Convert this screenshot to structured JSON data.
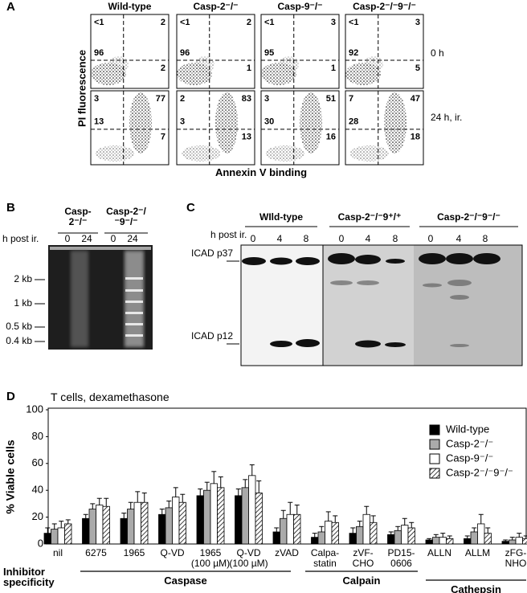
{
  "panel_a": {
    "label": "A",
    "columns": [
      "Wild-type",
      "Casp-2⁻/⁻",
      "Casp-9⁻/⁻",
      "Casp-2⁻/⁻9⁻/⁻"
    ],
    "rows": [
      "0 h",
      "24 h, ir."
    ],
    "quadrants": [
      [
        [
          "<1",
          2,
          96,
          2
        ],
        [
          "<1",
          2,
          96,
          1
        ],
        [
          "<1",
          3,
          95,
          1
        ],
        [
          "<1",
          3,
          92,
          5
        ]
      ],
      [
        [
          3,
          77,
          13,
          7
        ],
        [
          2,
          83,
          3,
          13
        ],
        [
          3,
          51,
          30,
          16
        ],
        [
          7,
          47,
          28,
          18
        ]
      ]
    ],
    "y_axis_label": "PI fluorescence",
    "x_axis_label": "Annexin V binding"
  },
  "panel_b": {
    "label": "B",
    "groups": [
      "Casp-2⁻/⁻",
      "Casp-2⁻/⁻9⁻/⁻"
    ],
    "time_label": "h post ir.",
    "times": [
      0,
      24,
      0,
      24
    ],
    "markers": [
      "2 kb",
      "1 kb",
      "0.5 kb",
      "0.4 kb"
    ]
  },
  "panel_c": {
    "label": "C",
    "groups": [
      "WIld-type",
      "Casp-2⁻/⁻9⁺/⁺",
      "Casp-2⁻/⁻9⁻/⁻"
    ],
    "time_label": "h post ir.",
    "times": [
      0,
      4,
      8,
      0,
      4,
      8,
      0,
      4,
      8
    ],
    "bands": [
      "ICAD p37",
      "ICAD p12"
    ]
  },
  "panel_d": {
    "label": "D",
    "specificity_label": "Inhibitor specificity",
    "specificity_groups": [
      "Caspase",
      "Calpain",
      "Cathepsin"
    ]
  },
  "chart_data": {
    "type": "bar",
    "title": "T cells, dexamethasone",
    "y_label": "% Viable cells",
    "categories": [
      "nil",
      "6275",
      "1965",
      "Q-VD",
      "1965 (100 µM)",
      "Q-VD (100 µM)",
      "zVAD",
      "Calpa-statin",
      "zVF-CHO",
      "PD15-0606",
      "ALLN",
      "ALLM",
      "zFG-NHO"
    ],
    "series": [
      {
        "name": "Wild-type",
        "color": "#000000",
        "values": [
          8,
          19,
          19,
          22,
          36,
          36,
          9,
          5,
          8,
          7,
          3,
          4,
          2
        ],
        "errors": [
          4,
          3,
          4,
          4,
          5,
          5,
          3,
          3,
          4,
          2,
          1,
          2,
          1
        ]
      },
      {
        "name": "Casp-2⁻/⁻",
        "color": "#aaaaaa",
        "values": [
          11,
          26,
          26,
          27,
          40,
          42,
          19,
          9,
          13,
          10,
          5,
          9,
          3
        ],
        "errors": [
          4,
          4,
          5,
          5,
          6,
          6,
          6,
          4,
          4,
          3,
          2,
          3,
          2
        ]
      },
      {
        "name": "Casp-9⁻/⁻",
        "color": "#ffffff",
        "values": [
          12,
          29,
          31,
          35,
          45,
          51,
          22,
          17,
          22,
          14,
          5,
          15,
          5
        ],
        "errors": [
          5,
          5,
          8,
          7,
          9,
          8,
          9,
          7,
          6,
          5,
          3,
          7,
          3
        ]
      },
      {
        "name": "Casp-2⁻/⁻9⁻/⁻",
        "color": "#ffffff",
        "pattern": "hatch",
        "values": [
          15,
          28,
          31,
          31,
          42,
          38,
          22,
          16,
          16,
          12,
          4,
          8,
          4
        ],
        "errors": [
          3,
          6,
          7,
          6,
          8,
          9,
          7,
          5,
          5,
          4,
          2,
          4,
          2
        ]
      }
    ],
    "ylim": [
      0,
      100
    ],
    "yticks": [
      0,
      20,
      40,
      60,
      80,
      100
    ],
    "legend": "right"
  }
}
